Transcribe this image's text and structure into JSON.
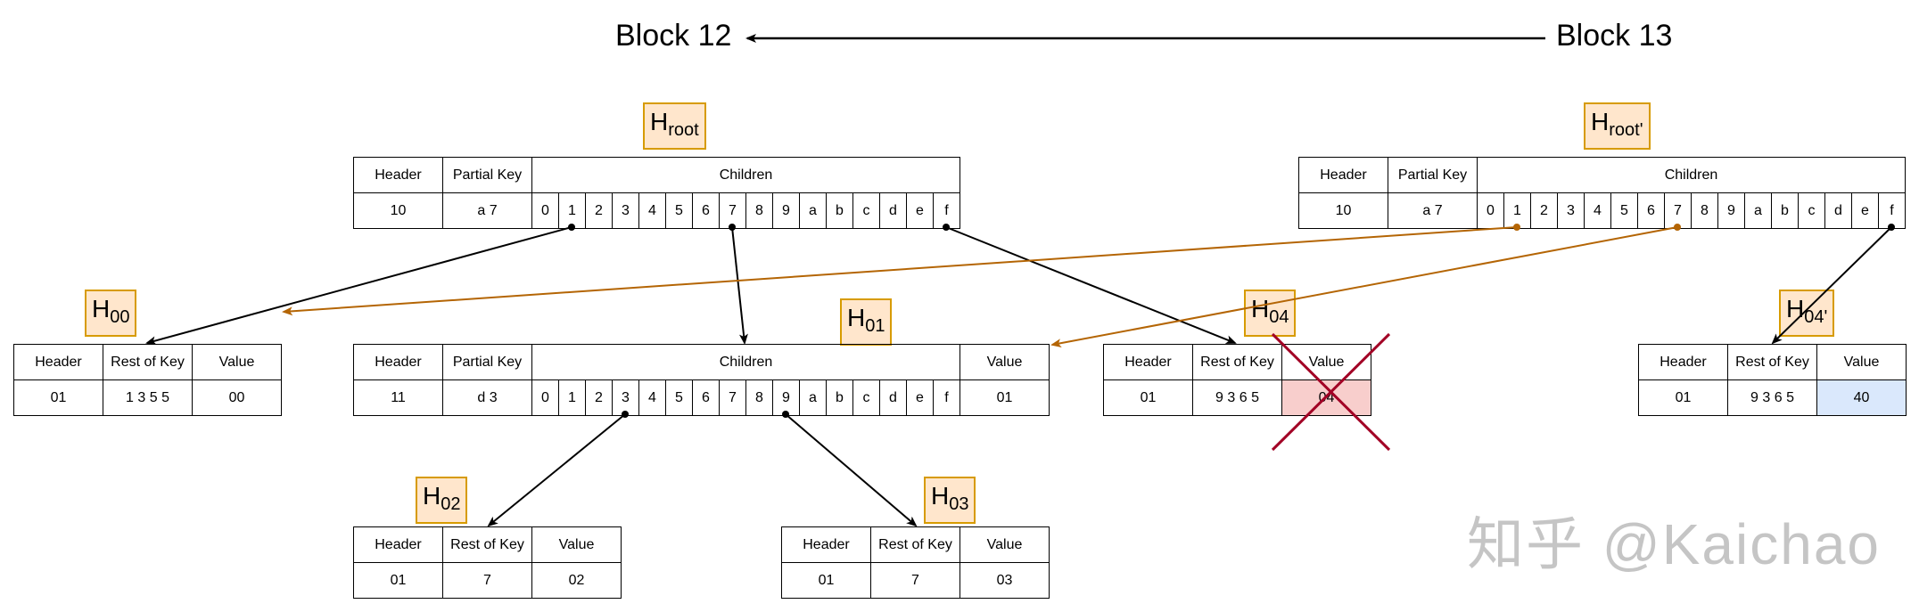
{
  "blocks": {
    "left": "Block 12",
    "right": "Block 13"
  },
  "labels": {
    "h_root": {
      "base": "H",
      "sub": "root"
    },
    "h_root_new": {
      "base": "H",
      "sub": "root'"
    },
    "h00": {
      "base": "H",
      "sub": "00"
    },
    "h01": {
      "base": "H",
      "sub": "01"
    },
    "h02": {
      "base": "H",
      "sub": "02"
    },
    "h03": {
      "base": "H",
      "sub": "03"
    },
    "h04": {
      "base": "H",
      "sub": "04"
    },
    "h04_new": {
      "base": "H",
      "sub": "04'"
    }
  },
  "nibbles": [
    "0",
    "1",
    "2",
    "3",
    "4",
    "5",
    "6",
    "7",
    "8",
    "9",
    "a",
    "b",
    "c",
    "d",
    "e",
    "f"
  ],
  "branch": {
    "header_label": "Header",
    "partial_key_label": "Partial Key",
    "children_label": "Children",
    "value_label": "Value"
  },
  "leaf": {
    "header_label": "Header",
    "rest_label": "Rest of Key",
    "value_label": "Value"
  },
  "root": {
    "header": "10",
    "partial_key": "a 7"
  },
  "root_new": {
    "header": "10",
    "partial_key": "a 7"
  },
  "n01": {
    "header": "11",
    "partial_key": "d 3",
    "value": "01"
  },
  "n00": {
    "header": "01",
    "rest": "1 3 5 5",
    "value": "00"
  },
  "n02": {
    "header": "01",
    "rest": "7",
    "value": "02"
  },
  "n03": {
    "header": "01",
    "rest": "7",
    "value": "03"
  },
  "n04": {
    "header": "01",
    "rest": "9 3 6 5",
    "value": "04",
    "deleted": true
  },
  "n04_new": {
    "header": "01",
    "rest": "9 3 6 5",
    "value": "40"
  },
  "colors": {
    "old_link": "#000000",
    "new_link": "#b46504",
    "cross": "#a20025",
    "label_fill": "#ffe6cc",
    "label_border": "#d79b00",
    "deleted_fill": "#f8cecc",
    "updated_fill": "#dae8fc"
  },
  "watermark": "知乎 @Kaichao"
}
